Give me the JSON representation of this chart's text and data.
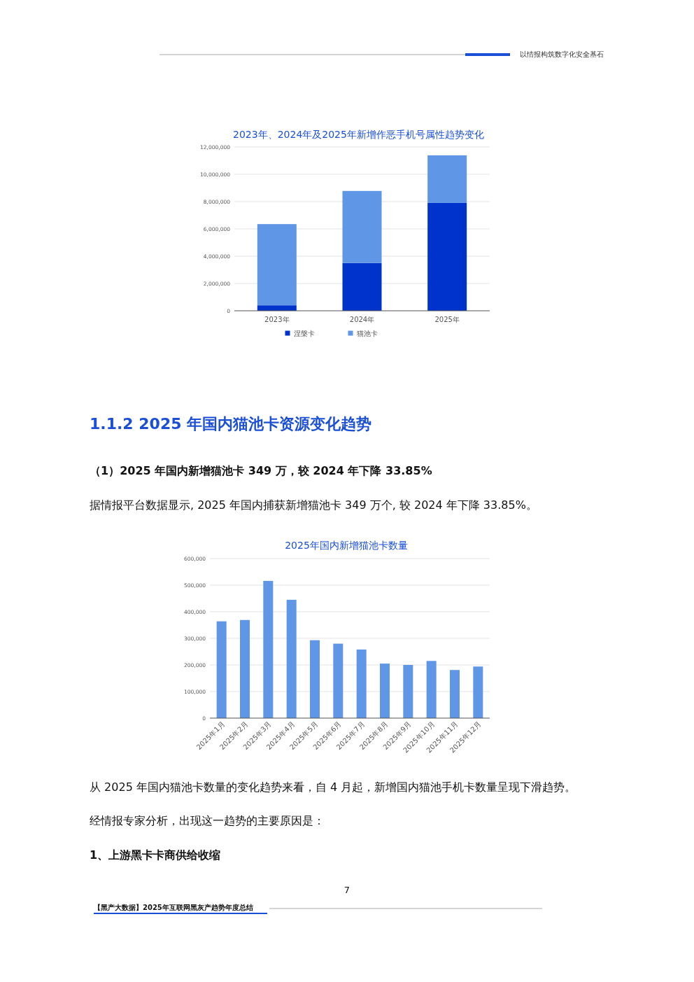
{
  "chart_data": [
    {
      "type": "bar",
      "title": "2023年、2024年及2025年新增作恶手机号属性趋势变化",
      "categories": [
        "2023年",
        "2024年",
        "2025年"
      ],
      "stacked": true,
      "series": [
        {
          "name": "涅槃卡",
          "color": "#0033cc",
          "values": [
            400000,
            3500000,
            7900000
          ]
        },
        {
          "name": "猫池卡",
          "color": "#6096e6",
          "values": [
            5950000,
            5280000,
            3490000
          ]
        }
      ],
      "ylim": [
        0,
        12000000
      ],
      "yticks": [
        {
          "value": 0,
          "label": "0"
        },
        {
          "value": 2000000,
          "label": "2,000,000"
        },
        {
          "value": 4000000,
          "label": "4,000,000"
        },
        {
          "value": 6000000,
          "label": "6,000,000"
        },
        {
          "value": 8000000,
          "label": "8,000,000"
        },
        {
          "value": 10000000,
          "label": "10,000,000"
        },
        {
          "value": 12000000,
          "label": "12,000,000"
        }
      ],
      "grid": "y",
      "legend": "bottom",
      "annotations": [
        "以情报构筑数字化安全基石"
      ]
    },
    {
      "type": "bar",
      "title": "2025年国内新增猫池卡数量",
      "categories": [
        "2025年1月",
        "2025年2月",
        "2025年3月",
        "2025年4月",
        "2025年5月",
        "2025年6月",
        "2025年7月",
        "2025年8月",
        "2025年9月",
        "2025年10月",
        "2025年11月",
        "2025年12月"
      ],
      "series": [
        {
          "color": "#6096e6",
          "values": [
            364000,
            369000,
            516000,
            445000,
            293000,
            280000,
            258000,
            205000,
            200000,
            215000,
            181000,
            194000
          ]
        }
      ],
      "ylim": [
        0,
        600000
      ],
      "yticks": [
        {
          "value": 0,
          "label": "0"
        },
        {
          "value": 100000,
          "label": "100,000"
        },
        {
          "value": 200000,
          "label": "200,000"
        },
        {
          "value": 300000,
          "label": "300,000"
        },
        {
          "value": 400000,
          "label": "400,000"
        },
        {
          "value": 500000,
          "label": "500,000"
        },
        {
          "value": 600000,
          "label": "600,000"
        }
      ],
      "grid": "y",
      "annotations": [
        "1.1.2 2025 年国内猫池卡资源变化趋势",
        "（1）2025 年国内新增猫池卡 349 万，较 2024 年下降 33.85%",
        "据情报平台数据显示, 2025 年国内捕获新增猫池卡 349 万个, 较 2024 年下降 33.85%。",
        "从 2025 年国内猫池卡数量的变化趋势来看，自 4 月起，新增国内猫池手机卡数量呈现下滑趋势。",
        "经情报专家分析，出现这一趋势的主要原因是：",
        "1、上游黑卡卡商供给收缩",
        "7",
        "【黑产大数据】2025年互联网黑灰产趋势年度总结"
      ]
    }
  ]
}
